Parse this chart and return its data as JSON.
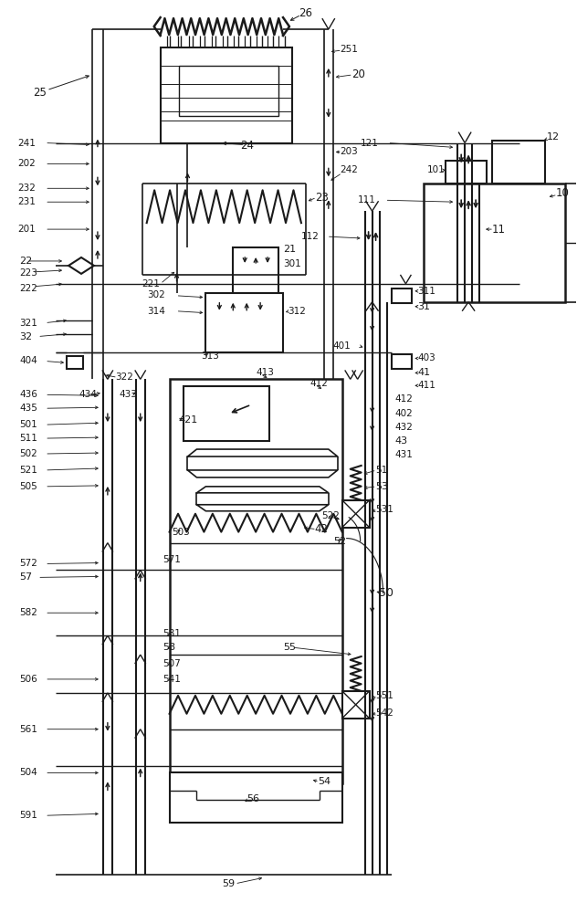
{
  "bg": "#ffffff",
  "lc": "#1a1a1a",
  "fw": 6.32,
  "fh": 10.0,
  "dpi": 100
}
